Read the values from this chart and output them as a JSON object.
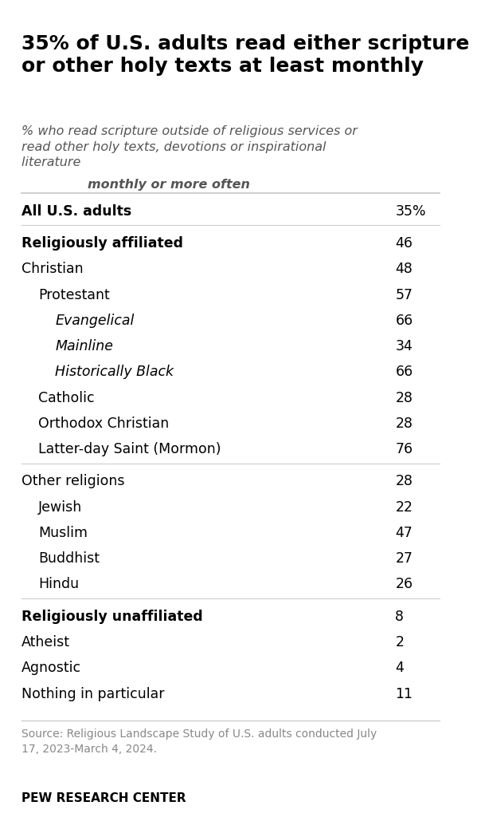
{
  "title": "35% of U.S. adults read either scripture\nor other holy texts at least monthly",
  "subtitle_normal": "% who read scripture outside of religious services or\nread other holy texts, devotions or inspirational\nliterature ",
  "subtitle_bold": "monthly or more often",
  "rows": [
    {
      "label": "All U.S. adults",
      "value": "35%",
      "style": "bold",
      "indent": 0,
      "sep_below": true
    },
    {
      "label": "Religiously affiliated",
      "value": "46",
      "style": "bold",
      "indent": 0,
      "sep_below": false
    },
    {
      "label": "Christian",
      "value": "48",
      "style": "normal",
      "indent": 0,
      "sep_below": false
    },
    {
      "label": "Protestant",
      "value": "57",
      "style": "normal",
      "indent": 1,
      "sep_below": false
    },
    {
      "label": "Evangelical",
      "value": "66",
      "style": "italic",
      "indent": 2,
      "sep_below": false
    },
    {
      "label": "Mainline",
      "value": "34",
      "style": "italic",
      "indent": 2,
      "sep_below": false
    },
    {
      "label": "Historically Black",
      "value": "66",
      "style": "italic",
      "indent": 2,
      "sep_below": false
    },
    {
      "label": "Catholic",
      "value": "28",
      "style": "normal",
      "indent": 1,
      "sep_below": false
    },
    {
      "label": "Orthodox Christian",
      "value": "28",
      "style": "normal",
      "indent": 1,
      "sep_below": false
    },
    {
      "label": "Latter-day Saint (Mormon)",
      "value": "76",
      "style": "normal",
      "indent": 1,
      "sep_below": true
    },
    {
      "label": "Other religions",
      "value": "28",
      "style": "normal",
      "indent": 0,
      "sep_below": false
    },
    {
      "label": "Jewish",
      "value": "22",
      "style": "normal",
      "indent": 1,
      "sep_below": false
    },
    {
      "label": "Muslim",
      "value": "47",
      "style": "normal",
      "indent": 1,
      "sep_below": false
    },
    {
      "label": "Buddhist",
      "value": "27",
      "style": "normal",
      "indent": 1,
      "sep_below": false
    },
    {
      "label": "Hindu",
      "value": "26",
      "style": "normal",
      "indent": 1,
      "sep_below": true
    },
    {
      "label": "Religiously unaffiliated",
      "value": "8",
      "style": "bold",
      "indent": 0,
      "sep_below": false
    },
    {
      "label": "Atheist",
      "value": "2",
      "style": "normal",
      "indent": 0,
      "sep_below": false
    },
    {
      "label": "Agnostic",
      "value": "4",
      "style": "normal",
      "indent": 0,
      "sep_below": false
    },
    {
      "label": "Nothing in particular",
      "value": "11",
      "style": "normal",
      "indent": 0,
      "sep_below": false
    }
  ],
  "source": "Source: Religious Landscape Study of U.S. adults conducted July\n17, 2023-March 4, 2024.",
  "footer": "PEW RESEARCH CENTER",
  "bg_color": "#ffffff",
  "text_color": "#000000",
  "subtitle_color": "#555555",
  "source_color": "#888888",
  "line_color": "#cccccc",
  "title_fontsize": 18,
  "subtitle_fontsize": 11.5,
  "row_fontsize": 12.5,
  "source_fontsize": 10,
  "footer_fontsize": 11
}
